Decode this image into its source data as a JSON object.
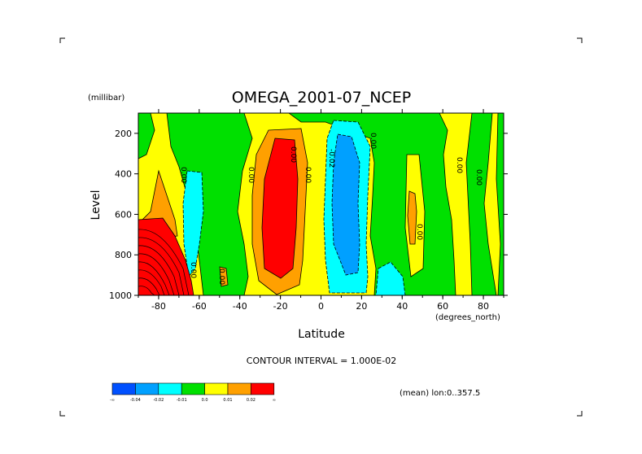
{
  "chart_data": {
    "type": "heatmap",
    "title": "OMEGA_2001-07_NCEP",
    "xlabel": "Latitude",
    "ylabel": "Level",
    "y_units": "(millibar)",
    "x_units": "(degrees_north)",
    "xlim": [
      -90,
      90
    ],
    "ylim": [
      1000,
      100
    ],
    "x_ticks": [
      -80,
      -60,
      -40,
      -20,
      0,
      20,
      40,
      60,
      80
    ],
    "y_ticks": [
      200,
      400,
      600,
      800,
      1000
    ],
    "contour_interval_text": "CONTOUR INTERVAL = 1.000E-02",
    "mean_text": "(mean) lon:0..357.5",
    "contour_labels": [
      "0.00",
      "-0.02",
      "0.00",
      "0.00",
      "0.00",
      "0.00",
      "0.00",
      "0.00",
      "0.00",
      "0.00",
      "0.00"
    ],
    "colorbar": {
      "labels": [
        "-∞",
        "-0.04",
        "-0.02",
        "-0.01",
        "0.0",
        "0.01",
        "0.02",
        "∞"
      ],
      "colors": [
        "#0050ff",
        "#00a0ff",
        "#00ffff",
        "#00e000",
        "#ffff00",
        "#ffa000",
        "#ff0000"
      ]
    },
    "regions": [
      {
        "name": "yellow-background",
        "value": 0.005,
        "color": "#ffff00"
      },
      {
        "name": "green-north",
        "value": -0.005,
        "color": "#00e000",
        "lat_range": [
          -70,
          90
        ],
        "p_range": [
          100,
          1000
        ]
      },
      {
        "name": "red-subtropics",
        "value": 0.025,
        "color": "#ff0000",
        "lat_range": [
          -30,
          -15
        ],
        "p_range": [
          250,
          900
        ]
      },
      {
        "name": "blue-equator",
        "value": -0.03,
        "color": "#00a0ff",
        "lat_range": [
          5,
          20
        ],
        "p_range": [
          200,
          950
        ]
      },
      {
        "name": "red-antarctic",
        "value": 0.05,
        "color": "#ff0000",
        "lat_range": [
          -90,
          -68
        ],
        "p_range": [
          680,
          1000
        ]
      }
    ]
  }
}
